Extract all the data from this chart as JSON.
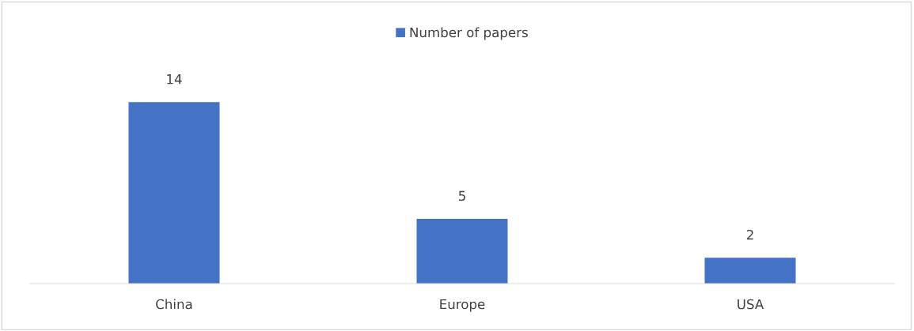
{
  "chart_data": {
    "type": "bar",
    "categories": [
      "China",
      "Europe",
      "USA"
    ],
    "series": [
      {
        "name": "Number of papers",
        "color": "#4472c4",
        "values": [
          14,
          5,
          2
        ]
      }
    ],
    "data_labels": true,
    "legend": "top",
    "grid": false,
    "tick_labels": "x"
  }
}
